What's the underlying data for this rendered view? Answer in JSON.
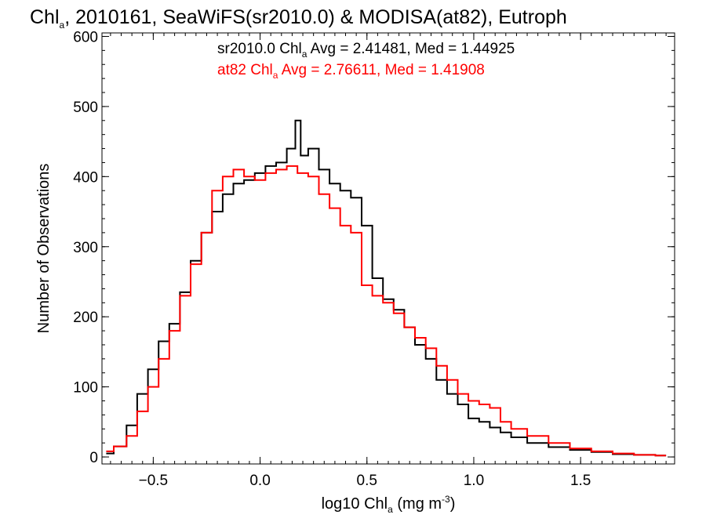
{
  "chart_data": {
    "type": "line",
    "title": {
      "prefix": "Chl",
      "sub": "a",
      "rest": ", 2010161, SeaWiFS(sr2010.0) & MODISA(at82), Eutroph"
    },
    "xlabel": {
      "prefix": "log10 Chl",
      "sub": "a",
      "mid": " (mg m",
      "sup": "-3",
      "suffix": ")"
    },
    "ylabel": "Number of Observations",
    "xlim": [
      -0.74,
      1.94
    ],
    "ylim": [
      -10,
      605
    ],
    "xticks": [
      {
        "value": -0.5,
        "label": "−0.5"
      },
      {
        "value": 0.0,
        "label": "0.0"
      },
      {
        "value": 0.5,
        "label": "0.5"
      },
      {
        "value": 1.0,
        "label": "1.0"
      },
      {
        "value": 1.5,
        "label": "1.5"
      }
    ],
    "yticks": [
      {
        "value": 0,
        "label": "0"
      },
      {
        "value": 100,
        "label": "100"
      },
      {
        "value": 200,
        "label": "200"
      },
      {
        "value": 300,
        "label": "300"
      },
      {
        "value": 400,
        "label": "400"
      },
      {
        "value": 500,
        "label": "500"
      },
      {
        "value": 600,
        "label": "600"
      }
    ],
    "legend": [
      {
        "prefix": "sr2010.0 Chl",
        "sub": "a",
        "rest": " Avg = 2.41481, Med = 1.44925",
        "color": "#000000"
      },
      {
        "prefix": "at82 Chl",
        "sub": "a",
        "rest": " Avg = 2.76611, Med = 1.41908",
        "color": "#ff0000"
      }
    ],
    "legend_position": "top-center",
    "grid": false,
    "series": [
      {
        "color": "#000000",
        "x": [
          -0.72,
          -0.65,
          -0.6,
          -0.55,
          -0.5,
          -0.45,
          -0.4,
          -0.35,
          -0.3,
          -0.25,
          -0.2,
          -0.15,
          -0.1,
          -0.05,
          0.0,
          0.05,
          0.1,
          0.15,
          0.18,
          0.2,
          0.25,
          0.3,
          0.35,
          0.4,
          0.45,
          0.5,
          0.55,
          0.6,
          0.65,
          0.7,
          0.75,
          0.8,
          0.85,
          0.9,
          0.95,
          1.0,
          1.05,
          1.1,
          1.15,
          1.2,
          1.3,
          1.4,
          1.5,
          1.6,
          1.7,
          1.8,
          1.9
        ],
        "values": [
          5,
          15,
          45,
          90,
          125,
          165,
          190,
          235,
          280,
          320,
          350,
          375,
          390,
          395,
          405,
          415,
          420,
          440,
          480,
          430,
          440,
          410,
          390,
          380,
          370,
          330,
          255,
          225,
          210,
          185,
          160,
          140,
          110,
          90,
          75,
          55,
          50,
          42,
          35,
          28,
          20,
          14,
          10,
          7,
          4,
          3,
          2
        ]
      },
      {
        "color": "#ff0000",
        "x": [
          -0.72,
          -0.65,
          -0.6,
          -0.55,
          -0.5,
          -0.45,
          -0.4,
          -0.35,
          -0.3,
          -0.25,
          -0.2,
          -0.15,
          -0.1,
          -0.05,
          0.0,
          0.05,
          0.1,
          0.15,
          0.2,
          0.25,
          0.3,
          0.35,
          0.4,
          0.45,
          0.5,
          0.55,
          0.6,
          0.65,
          0.7,
          0.75,
          0.8,
          0.85,
          0.9,
          0.95,
          1.0,
          1.05,
          1.1,
          1.15,
          1.2,
          1.3,
          1.4,
          1.5,
          1.6,
          1.7,
          1.8,
          1.9
        ],
        "values": [
          8,
          15,
          30,
          65,
          100,
          140,
          180,
          230,
          275,
          320,
          380,
          400,
          410,
          400,
          395,
          405,
          410,
          415,
          405,
          400,
          375,
          355,
          330,
          320,
          245,
          230,
          220,
          205,
          185,
          170,
          155,
          130,
          110,
          90,
          80,
          75,
          70,
          50,
          40,
          30,
          20,
          12,
          8,
          5,
          3,
          2
        ]
      }
    ]
  }
}
